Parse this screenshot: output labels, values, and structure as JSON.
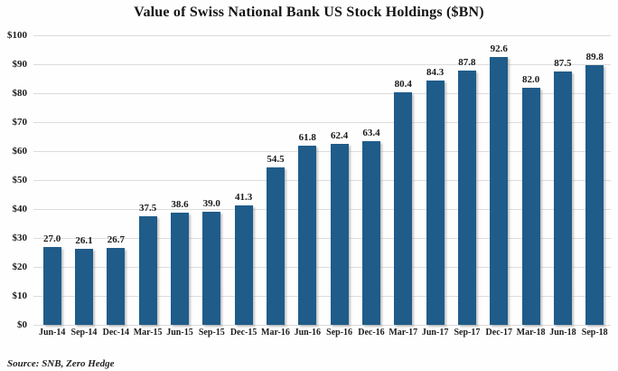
{
  "chart_data": {
    "type": "bar",
    "title": "Value of Swiss National Bank US Stock Holdings ($BN)",
    "categories": [
      "Jun-14",
      "Sep-14",
      "Dec-14",
      "Mar-15",
      "Jun-15",
      "Sep-15",
      "Dec-15",
      "Mar-16",
      "Jun-16",
      "Sep-16",
      "Dec-16",
      "Mar-17",
      "Jun-17",
      "Sep-17",
      "Dec-17",
      "Mar-18",
      "Jun-18",
      "Sep-18"
    ],
    "values": [
      27.0,
      26.1,
      26.7,
      37.5,
      38.6,
      39.0,
      41.3,
      54.5,
      61.8,
      62.4,
      63.4,
      80.4,
      84.3,
      87.8,
      92.6,
      82.0,
      87.5,
      89.8
    ],
    "value_labels": [
      "27.0",
      "26.1",
      "26.7",
      "37.5",
      "38.6",
      "39.0",
      "41.3",
      "54.5",
      "61.8",
      "62.4",
      "63.4",
      "80.4",
      "84.3",
      "87.8",
      "92.6",
      "82.0",
      "87.5",
      "89.8"
    ],
    "xlabel": "",
    "ylabel": "",
    "ylim": [
      0,
      100
    ],
    "y_tick_step": 10,
    "y_tick_labels": [
      "$0",
      "$10",
      "$20",
      "$30",
      "$40",
      "$50",
      "$60",
      "$70",
      "$80",
      "$90",
      "$100"
    ],
    "grid": true,
    "legend": "none",
    "bar_color": "#1f5c8a",
    "gridline_color": "#dcdcdc",
    "source": "Source: SNB, Zero Hedge"
  }
}
